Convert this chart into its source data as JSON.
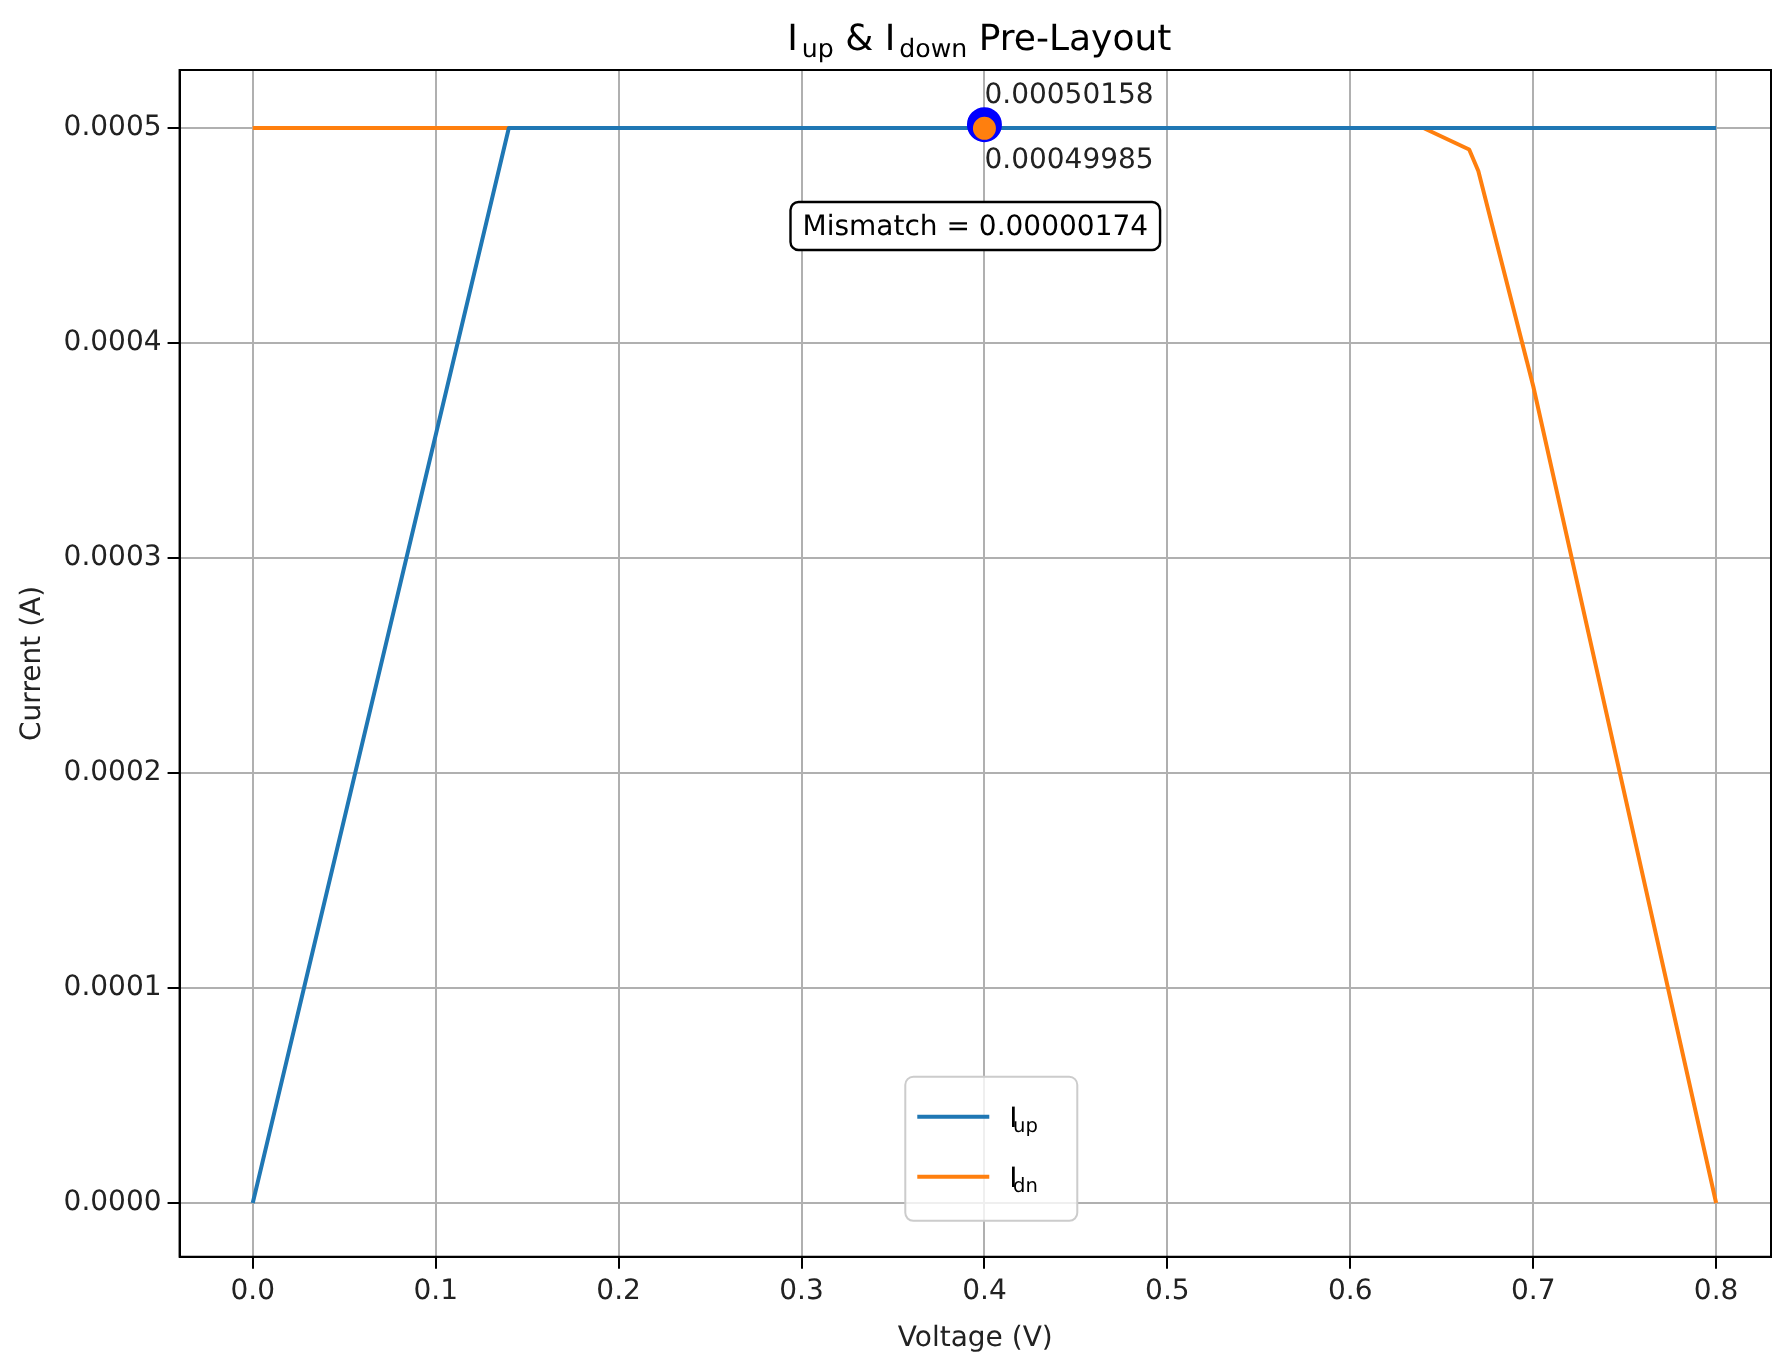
{
  "chart_data": {
    "type": "line",
    "title": "I$_{up}$ & I$_{down}$ Pre-Layout",
    "xlabel": "Voltage (V)",
    "ylabel": "Current (A)",
    "series": [
      {
        "name": "I$_{up}$",
        "color": "#1f77b4",
        "marker": "none",
        "x": [
          0,
          0.14,
          0.16,
          0.8
        ],
        "values": [
          0,
          0.0005,
          0.0005,
          0.0005
        ]
      },
      {
        "name": "I$_{dn}$",
        "color": "#ff7f0e",
        "marker": "none",
        "x": [
          0,
          0.64,
          0.665,
          0.67,
          0.7,
          0.8
        ],
        "values": [
          0.0005,
          0.0005,
          0.00049,
          0.00048,
          0.00038,
          0
        ]
      },
      {
        "type": "scatter",
        "color": "#0000ff",
        "marker": "circle",
        "x": [
          0.4
        ],
        "values": [
          0.00050158
        ]
      },
      {
        "type": "scatter",
        "color": "#ff7f0e",
        "marker": "circle",
        "x": [
          0.4
        ],
        "values": [
          0.00049985
        ]
      }
    ],
    "xlim": [
      -0.04,
      0.83
    ],
    "ylim": [
      -2.5e-05,
      0.000527
    ],
    "xticks": [
      {
        "value": 0,
        "label": "0.0"
      },
      {
        "value": 0.1,
        "label": "0.1"
      },
      {
        "value": 0.2,
        "label": "0.2"
      },
      {
        "value": 0.3,
        "label": "0.3"
      },
      {
        "value": 0.4,
        "label": "0.4"
      },
      {
        "value": 0.5,
        "label": "0.5"
      },
      {
        "value": 0.6,
        "label": "0.6"
      },
      {
        "value": 0.7,
        "label": "0.7"
      },
      {
        "value": 0.8,
        "label": "0.8"
      }
    ],
    "yticks": [
      {
        "value": 0,
        "label": "0.0000"
      },
      {
        "value": 0.0001,
        "label": "0.0001"
      },
      {
        "value": 0.0002,
        "label": "0.0002"
      },
      {
        "value": 0.0003,
        "label": "0.0003"
      },
      {
        "value": 0.0004,
        "label": "0.0004"
      },
      {
        "value": 0.0005,
        "label": "0.0005"
      }
    ],
    "annotations": [
      {
        "text": "0.00050158",
        "x": 0.4,
        "y": 0.00050158
      },
      {
        "text": "0.00049985",
        "x": 0.4,
        "y": 0.00049985
      },
      "Mismatch = 0.00000174"
    ],
    "grid": true,
    "legend": "bottom"
  }
}
